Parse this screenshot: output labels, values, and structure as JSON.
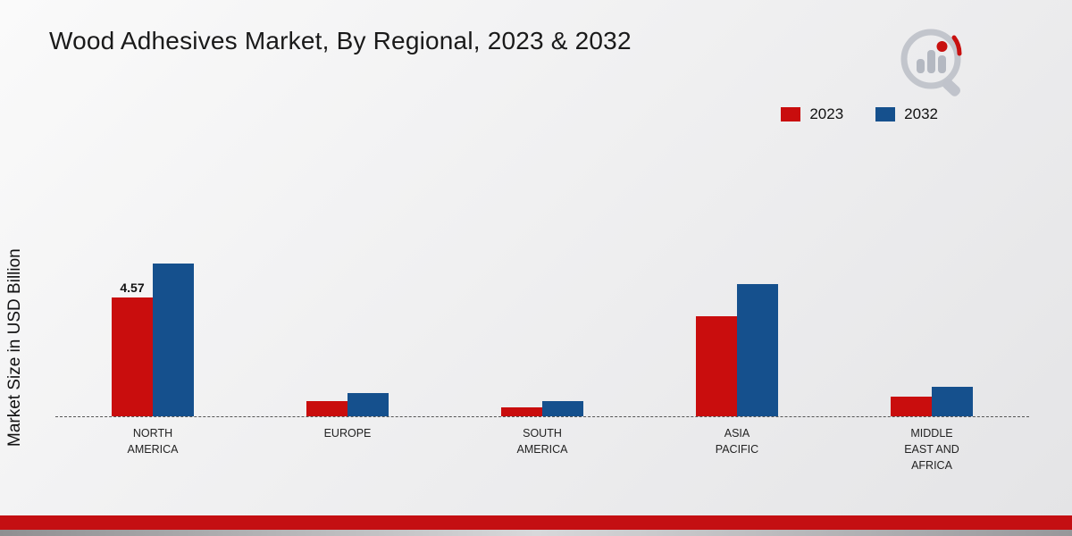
{
  "title": "Wood Adhesives Market, By Regional, 2023 & 2032",
  "y_axis_label": "Market Size in USD Billion",
  "colors": {
    "series_2023": "#c90d0d",
    "series_2032": "#15508d",
    "footer_bar": "#c40f12"
  },
  "legend": [
    {
      "label": "2023",
      "color": "#c90d0d"
    },
    {
      "label": "2032",
      "color": "#15508d"
    }
  ],
  "chart_data": {
    "type": "bar",
    "categories": [
      "NORTH AMERICA",
      "EUROPE",
      "SOUTH AMERICA",
      "ASIA PACIFIC",
      "MIDDLE EAST AND AFRICA"
    ],
    "series": [
      {
        "name": "2023",
        "color": "#c90d0d",
        "values": [
          4.57,
          0.6,
          0.35,
          3.85,
          0.75
        ]
      },
      {
        "name": "2032",
        "color": "#15508d",
        "values": [
          5.9,
          0.9,
          0.6,
          5.1,
          1.15
        ]
      }
    ],
    "data_labels": {
      "NORTH AMERICA": {
        "2023": "4.57"
      }
    },
    "title": "Wood Adhesives Market, By Regional, 2023 & 2032",
    "xlabel": "",
    "ylabel": "Market Size in USD Billion",
    "ylim": [
      0,
      6.5
    ],
    "grid": false,
    "baseline_style": "dashed",
    "legend_position": "top-right"
  }
}
